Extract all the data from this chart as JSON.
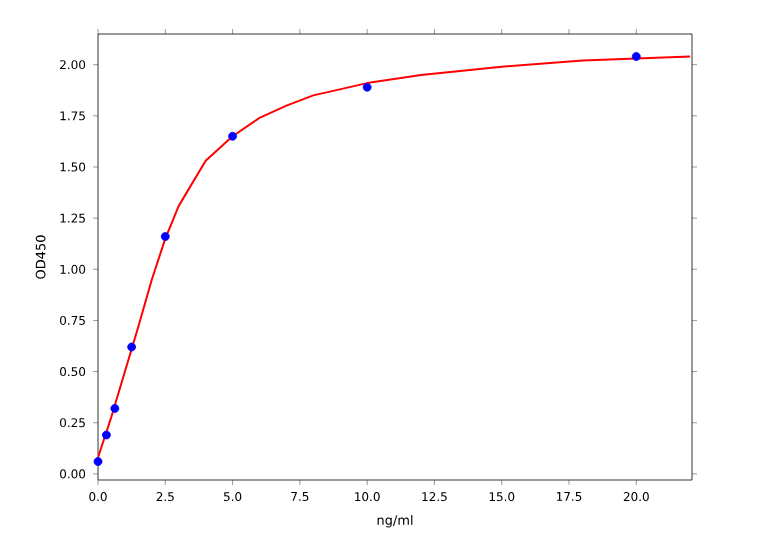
{
  "chart_data": {
    "type": "scatter",
    "xlabel": "ng/ml",
    "ylabel": "OD450",
    "xlim": [
      0,
      22.07
    ],
    "ylim": [
      -0.03,
      2.15
    ],
    "xticks": [
      {
        "value": 0,
        "label": "0.0"
      },
      {
        "value": 2.5,
        "label": "2.5"
      },
      {
        "value": 5,
        "label": "5.0"
      },
      {
        "value": 7.5,
        "label": "7.5"
      },
      {
        "value": 10,
        "label": "10.0"
      },
      {
        "value": 12.5,
        "label": "12.5"
      },
      {
        "value": 15,
        "label": "15.0"
      },
      {
        "value": 17.5,
        "label": "17.5"
      },
      {
        "value": 20,
        "label": "20.0"
      }
    ],
    "yticks": [
      {
        "value": 0,
        "label": "0.00"
      },
      {
        "value": 0.25,
        "label": "0.25"
      },
      {
        "value": 0.5,
        "label": "0.50"
      },
      {
        "value": 0.75,
        "label": "0.75"
      },
      {
        "value": 1,
        "label": "1.00"
      },
      {
        "value": 1.25,
        "label": "1.25"
      },
      {
        "value": 1.5,
        "label": "1.50"
      },
      {
        "value": 1.75,
        "label": "1.75"
      },
      {
        "value": 2,
        "label": "2.00"
      }
    ],
    "series": [
      {
        "type": "line",
        "color": "#ff0000",
        "marker": "none",
        "x": [
          0,
          0.5,
          1,
          1.5,
          2,
          2.5,
          3,
          4,
          5,
          6,
          7,
          8,
          10,
          12,
          15,
          18,
          20,
          22
        ],
        "values": [
          0.08,
          0.28,
          0.5,
          0.72,
          0.95,
          1.15,
          1.31,
          1.53,
          1.65,
          1.74,
          1.8,
          1.85,
          1.91,
          1.95,
          1.99,
          2.02,
          2.03,
          2.04
        ]
      },
      {
        "color": "#0000ff",
        "marker": "circle",
        "x": [
          0,
          0.3125,
          0.625,
          1.25,
          2.5,
          5,
          10,
          20
        ],
        "values": [
          0.06,
          0.19,
          0.32,
          0.62,
          1.16,
          1.65,
          1.89,
          2.04
        ]
      }
    ]
  }
}
